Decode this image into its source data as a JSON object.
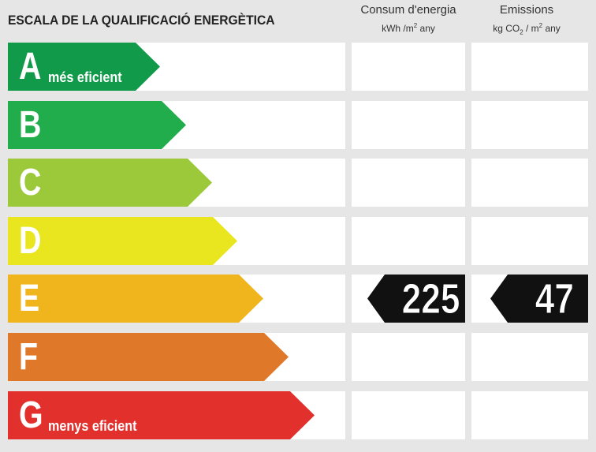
{
  "title": "ESCALA DE LA QUALIFICACIÓ ENERGÈTICA",
  "columns": {
    "consum": {
      "line1": "Consum d'energia",
      "unit_main": "kWh /m",
      "unit_sup": "2",
      "unit_tail": "  any"
    },
    "emissions": {
      "line1": "Emissions",
      "unit_main": "kg CO",
      "unit_sub": "2",
      "unit_mid": " / m",
      "unit_sup": "2",
      "unit_tail": "  any"
    }
  },
  "ratings": [
    {
      "letter": "A",
      "tag": "més eficient",
      "color": "#109a4a"
    },
    {
      "letter": "B",
      "tag": "",
      "color": "#21ad4b"
    },
    {
      "letter": "C",
      "tag": "",
      "color": "#9bc93a"
    },
    {
      "letter": "D",
      "tag": "",
      "color": "#e9e61f"
    },
    {
      "letter": "E",
      "tag": "",
      "color": "#f0b41c"
    },
    {
      "letter": "F",
      "tag": "",
      "color": "#e0782a"
    },
    {
      "letter": "G",
      "tag": "menys eficient",
      "color": "#e2302c"
    }
  ],
  "result": {
    "row_letter": "E",
    "consum_value": "225",
    "emissions_value": "47"
  }
}
